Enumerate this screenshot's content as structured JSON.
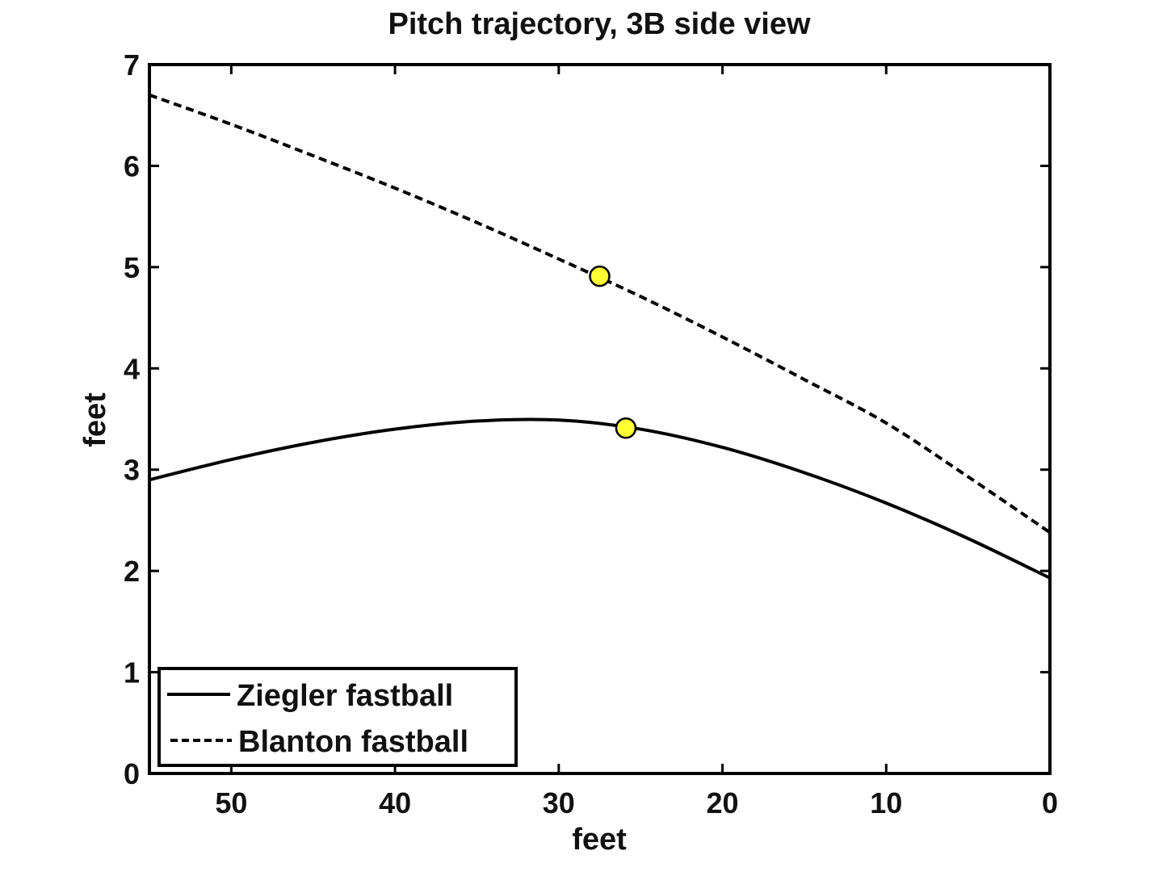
{
  "chart_data": {
    "type": "line",
    "title": "Pitch trajectory, 3B side view",
    "xlabel": "feet",
    "ylabel": "feet",
    "xlim": [
      55,
      0
    ],
    "ylim": [
      0,
      7
    ],
    "x_reversed": true,
    "xticks": [
      50,
      40,
      30,
      20,
      10,
      0
    ],
    "yticks": [
      0,
      1,
      2,
      3,
      4,
      5,
      6,
      7
    ],
    "grid": false,
    "legend_position": "bottom-left",
    "series": [
      {
        "name": "Ziegler fastball",
        "style": "solid",
        "color": "#000000",
        "x": [
          55,
          50,
          45,
          40,
          35,
          30,
          25,
          20,
          15,
          10,
          5,
          0
        ],
        "y": [
          2.9,
          3.1,
          3.27,
          3.4,
          3.48,
          3.49,
          3.4,
          3.22,
          2.97,
          2.67,
          2.32,
          1.93
        ],
        "marker_point": {
          "x": 25.9,
          "y": 3.41
        }
      },
      {
        "name": "Blanton fastball",
        "style": "dashed",
        "color": "#000000",
        "x": [
          55,
          50,
          45,
          40,
          35,
          30,
          25,
          20,
          15,
          10,
          5,
          0
        ],
        "y": [
          6.7,
          6.41,
          6.1,
          5.78,
          5.44,
          5.08,
          4.71,
          4.31,
          3.89,
          3.46,
          2.93,
          2.38
        ],
        "marker_point": {
          "x": 27.5,
          "y": 4.91
        }
      }
    ],
    "marker_color": "#ffff33"
  }
}
